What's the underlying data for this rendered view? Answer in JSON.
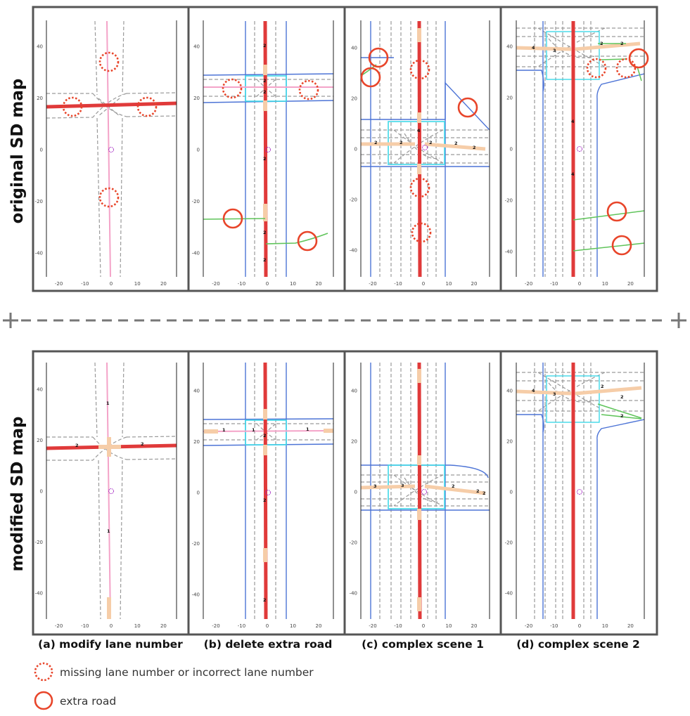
{
  "row_titles": {
    "top": "original SD map",
    "bottom": "modified SD map"
  },
  "captions": [
    "(a) modify lane number",
    "(b) delete extra road",
    "(c) complex scene 1",
    "(d) complex scene 2"
  ],
  "legend": {
    "dotted_circle": "missing lane number or incorrect lane number",
    "solid_circle": "extra road"
  },
  "axes": {
    "x_ticks": [
      "-20",
      "-10",
      "0",
      "10",
      "20"
    ],
    "y_ticks": [
      "40",
      "20",
      "0",
      "-20",
      "-40"
    ]
  },
  "colors": {
    "frame": "#555555",
    "separator": "#777777",
    "highlight_circle": "#e8452a",
    "road_red": "#e03a3a",
    "road_pink": "#f4a3c8",
    "road_green": "#5fc45a",
    "road_blue": "#4d74d6",
    "crossing_cyan": "#3fd9e8",
    "junction_peach": "#f6cda8",
    "lane_grey": "#9a9a9a"
  },
  "lane_labels": {
    "a_bottom": [
      "1",
      "2",
      "2",
      "1"
    ],
    "b_bottom": [
      "1",
      "1",
      "1",
      "2",
      "2",
      "2"
    ],
    "c_bottom": [
      "3",
      "3",
      "2",
      "2",
      "2"
    ],
    "d_bottom": [
      "4",
      "3",
      "2",
      "2",
      "2"
    ]
  }
}
